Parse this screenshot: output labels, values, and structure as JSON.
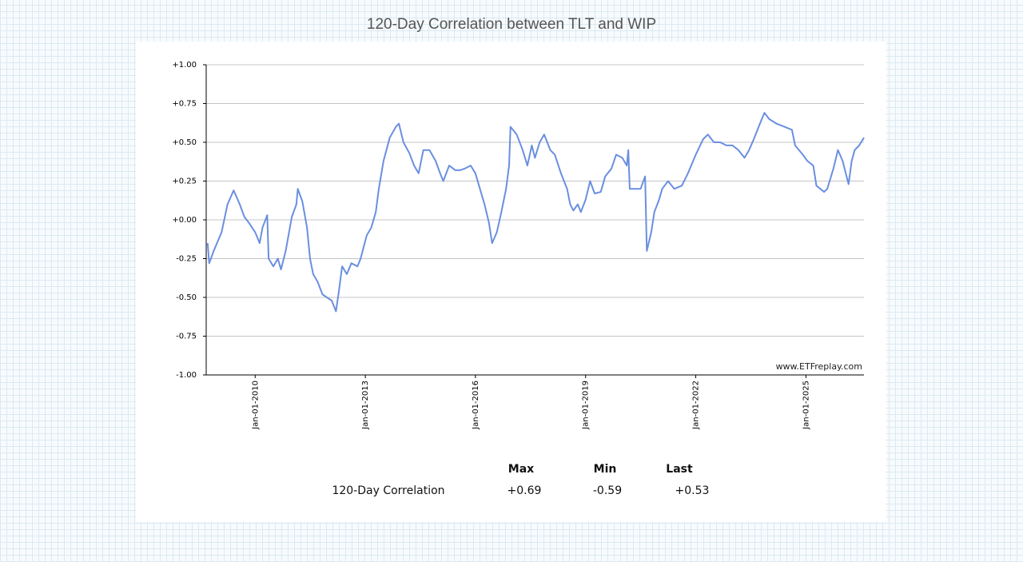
{
  "chart_data": {
    "type": "line",
    "title": "120-Day Correlation between TLT and WIP",
    "annotation": "www.ETFreplay.com",
    "color": "#6a8fe0",
    "grid": true,
    "xlim": [
      "2008-09-01",
      "2026-08-01"
    ],
    "xticks": [
      {
        "value": "2010-01-01",
        "label": "Jan-01-2010"
      },
      {
        "value": "2013-01-01",
        "label": "Jan-01-2013"
      },
      {
        "value": "2016-01-01",
        "label": "Jan-01-2016"
      },
      {
        "value": "2019-01-01",
        "label": "Jan-01-2019"
      },
      {
        "value": "2022-01-01",
        "label": "Jan-01-2022"
      },
      {
        "value": "2025-01-01",
        "label": "Jan-01-2025"
      }
    ],
    "ylim": [
      -1,
      1
    ],
    "yticks": [
      {
        "value": -1,
        "label": "-1.00"
      },
      {
        "value": -0.75,
        "label": "-0.75"
      },
      {
        "value": -0.5,
        "label": "-0.50"
      },
      {
        "value": -0.25,
        "label": "-0.25"
      },
      {
        "value": 0,
        "label": "+0.00"
      },
      {
        "value": 0.25,
        "label": "+0.25"
      },
      {
        "value": 0.5,
        "label": "+0.50"
      },
      {
        "value": 0.75,
        "label": "+0.75"
      },
      {
        "value": 1,
        "label": "+1.00"
      }
    ],
    "x": [
      "2008-09-15",
      "2008-10-01",
      "2008-11-15",
      "2009-02-01",
      "2009-04-01",
      "2009-06-01",
      "2009-08-01",
      "2009-09-15",
      "2009-11-01",
      "2010-01-01",
      "2010-02-15",
      "2010-03-15",
      "2010-05-01",
      "2010-05-15",
      "2010-07-01",
      "2010-08-15",
      "2010-09-15",
      "2010-11-01",
      "2011-01-01",
      "2011-02-15",
      "2011-03-01",
      "2011-04-15",
      "2011-06-01",
      "2011-07-01",
      "2011-08-01",
      "2011-09-15",
      "2011-11-01",
      "2011-12-15",
      "2012-02-01",
      "2012-03-15",
      "2012-04-15",
      "2012-05-15",
      "2012-07-01",
      "2012-08-15",
      "2012-10-15",
      "2012-11-15",
      "2013-01-15",
      "2013-03-01",
      "2013-04-15",
      "2013-05-15",
      "2013-07-01",
      "2013-09-01",
      "2013-11-01",
      "2013-12-01",
      "2014-01-15",
      "2014-03-15",
      "2014-05-01",
      "2014-06-15",
      "2014-08-01",
      "2014-10-01",
      "2014-12-01",
      "2015-01-15",
      "2015-02-15",
      "2015-04-15",
      "2015-06-15",
      "2015-08-01",
      "2015-09-15",
      "2015-11-15",
      "2016-01-01",
      "2016-02-15",
      "2016-04-01",
      "2016-05-15",
      "2016-06-15",
      "2016-08-01",
      "2016-09-15",
      "2016-11-01",
      "2016-12-01",
      "2016-12-15",
      "2017-02-15",
      "2017-04-15",
      "2017-06-01",
      "2017-07-15",
      "2017-08-15",
      "2017-10-01",
      "2017-11-15",
      "2018-01-15",
      "2018-03-01",
      "2018-05-01",
      "2018-07-01",
      "2018-08-01",
      "2018-09-01",
      "2018-10-15",
      "2018-11-15",
      "2019-01-01",
      "2019-02-15",
      "2019-04-01",
      "2019-06-01",
      "2019-07-15",
      "2019-09-15",
      "2019-11-01",
      "2020-01-01",
      "2020-02-15",
      "2020-03-01",
      "2020-03-15",
      "2020-05-01",
      "2020-07-01",
      "2020-08-15",
      "2020-09-01",
      "2020-10-15",
      "2020-11-15",
      "2021-01-01",
      "2021-02-01",
      "2021-04-01",
      "2021-06-01",
      "2021-08-15",
      "2021-10-15",
      "2022-01-01",
      "2022-03-15",
      "2022-05-01",
      "2022-07-01",
      "2022-09-01",
      "2022-11-01",
      "2023-01-01",
      "2023-03-01",
      "2023-05-01",
      "2023-06-15",
      "2023-08-01",
      "2023-10-01",
      "2023-11-15",
      "2024-01-01",
      "2024-03-15",
      "2024-06-01",
      "2024-08-15",
      "2024-09-15",
      "2024-12-01",
      "2025-01-15",
      "2025-03-15",
      "2025-04-15",
      "2025-07-01",
      "2025-08-01",
      "2025-10-01",
      "2025-11-15",
      "2026-01-01",
      "2026-02-01",
      "2026-03-01",
      "2026-04-01",
      "2026-05-01",
      "2026-06-15",
      "2026-08-01"
    ],
    "values": [
      -0.15,
      -0.28,
      -0.2,
      -0.08,
      0.1,
      0.19,
      0.1,
      0.02,
      -0.02,
      -0.08,
      -0.15,
      -0.05,
      0.03,
      -0.25,
      -0.3,
      -0.25,
      -0.32,
      -0.2,
      0.02,
      0.1,
      0.2,
      0.12,
      -0.05,
      -0.25,
      -0.35,
      -0.4,
      -0.48,
      -0.5,
      -0.52,
      -0.59,
      -0.45,
      -0.3,
      -0.35,
      -0.28,
      -0.3,
      -0.25,
      -0.1,
      -0.05,
      0.05,
      0.2,
      0.38,
      0.53,
      0.6,
      0.62,
      0.5,
      0.43,
      0.35,
      0.3,
      0.45,
      0.45,
      0.38,
      0.3,
      0.25,
      0.35,
      0.32,
      0.32,
      0.33,
      0.35,
      0.3,
      0.2,
      0.1,
      -0.02,
      -0.15,
      -0.08,
      0.05,
      0.2,
      0.35,
      0.6,
      0.55,
      0.45,
      0.35,
      0.48,
      0.4,
      0.5,
      0.55,
      0.45,
      0.42,
      0.3,
      0.2,
      0.1,
      0.06,
      0.1,
      0.05,
      0.13,
      0.25,
      0.17,
      0.18,
      0.28,
      0.33,
      0.42,
      0.4,
      0.35,
      0.45,
      0.2,
      0.2,
      0.2,
      0.28,
      -0.2,
      -0.08,
      0.05,
      0.13,
      0.2,
      0.25,
      0.2,
      0.22,
      0.3,
      0.42,
      0.52,
      0.55,
      0.5,
      0.5,
      0.48,
      0.48,
      0.45,
      0.4,
      0.45,
      0.52,
      0.62,
      0.69,
      0.65,
      0.62,
      0.6,
      0.58,
      0.48,
      0.42,
      0.38,
      0.35,
      0.22,
      0.18,
      0.2,
      0.33,
      0.45,
      0.38,
      0.3,
      0.23,
      0.38,
      0.45,
      0.48,
      0.53
    ]
  },
  "stats": {
    "headers": [
      "Max",
      "Min",
      "Last"
    ],
    "rows": [
      [
        "120-Day Correlation",
        "+0.69",
        "-0.59",
        "+0.53"
      ]
    ]
  }
}
